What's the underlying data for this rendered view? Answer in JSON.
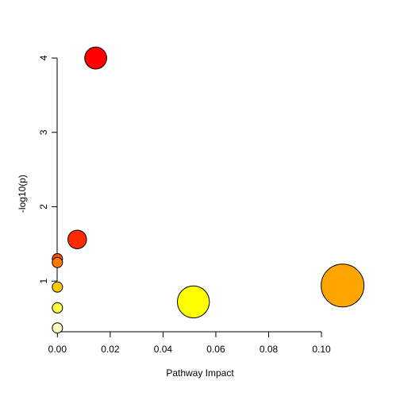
{
  "chart_data": {
    "type": "scatter",
    "title": "",
    "xlabel": "Pathway Impact",
    "ylabel": "-log10(p)",
    "xlim": [
      -0.004,
      0.112
    ],
    "ylim": [
      0.2,
      4.15
    ],
    "xticks": [
      0.0,
      0.02,
      0.04,
      0.06,
      0.08,
      0.1
    ],
    "xtick_labels": [
      "0.00",
      "0.02",
      "0.04",
      "0.06",
      "0.08",
      "0.10"
    ],
    "yticks": [
      1,
      2,
      3,
      4
    ],
    "ytick_labels": [
      "1",
      "2",
      "3",
      "4"
    ],
    "grid": false,
    "legend": "none",
    "points": [
      {
        "x": 0.0145,
        "y": 4.0,
        "size": 0.5,
        "color": "#FF0000"
      },
      {
        "x": 0.0075,
        "y": 1.56,
        "size": 0.42,
        "color": "#FF2A00"
      },
      {
        "x": 0.0,
        "y": 1.3,
        "size": 0.22,
        "color": "#FF5000"
      },
      {
        "x": 0.0,
        "y": 1.25,
        "size": 0.22,
        "color": "#FF7A00"
      },
      {
        "x": 0.108,
        "y": 0.94,
        "size": 1.0,
        "color": "#FFA500"
      },
      {
        "x": 0.0,
        "y": 0.92,
        "size": 0.22,
        "color": "#FFC800"
      },
      {
        "x": 0.0515,
        "y": 0.72,
        "size": 0.74,
        "color": "#FFFF00"
      },
      {
        "x": 0.0,
        "y": 0.64,
        "size": 0.22,
        "color": "#FFFF40"
      },
      {
        "x": 0.0,
        "y": 0.37,
        "size": 0.22,
        "color": "#FFFFC0"
      }
    ]
  }
}
